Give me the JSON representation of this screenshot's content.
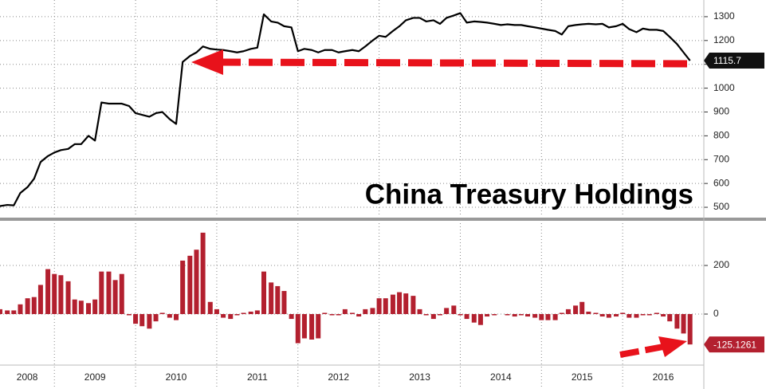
{
  "chart_data": [
    {
      "type": "line",
      "title": "China Treasury Holdings",
      "x": [
        2008.33,
        2008.42,
        2008.5,
        2008.58,
        2008.67,
        2008.75,
        2008.83,
        2008.92,
        2009,
        2009.08,
        2009.17,
        2009.25,
        2009.33,
        2009.42,
        2009.5,
        2009.58,
        2009.67,
        2009.75,
        2009.83,
        2009.92,
        2010,
        2010.08,
        2010.17,
        2010.25,
        2010.33,
        2010.42,
        2010.5,
        2010.58,
        2010.67,
        2010.75,
        2010.83,
        2010.92,
        2011,
        2011.08,
        2011.17,
        2011.25,
        2011.33,
        2011.42,
        2011.5,
        2011.58,
        2011.67,
        2011.75,
        2011.83,
        2011.92,
        2012,
        2012.08,
        2012.17,
        2012.25,
        2012.33,
        2012.42,
        2012.5,
        2012.58,
        2012.67,
        2012.75,
        2012.83,
        2012.92,
        2013,
        2013.08,
        2013.17,
        2013.25,
        2013.33,
        2013.42,
        2013.5,
        2013.58,
        2013.67,
        2013.75,
        2013.83,
        2013.92,
        2014,
        2014.08,
        2014.17,
        2014.25,
        2014.33,
        2014.42,
        2014.5,
        2014.58,
        2014.67,
        2014.75,
        2014.83,
        2014.92,
        2015,
        2015.08,
        2015.17,
        2015.25,
        2015.33,
        2015.42,
        2015.5,
        2015.58,
        2015.67,
        2015.75,
        2015.83,
        2015.92,
        2016,
        2016.08,
        2016.17,
        2016.25,
        2016.33,
        2016.42,
        2016.5,
        2016.58,
        2016.67,
        2016.75,
        2016.83
      ],
      "series": [
        {
          "color": "#000000",
          "values": [
            505,
            510,
            508,
            560,
            585,
            620,
            690,
            715,
            730,
            740,
            745,
            765,
            765,
            800,
            780,
            940,
            935,
            935,
            935,
            925,
            895,
            888,
            880,
            895,
            900,
            870,
            850,
            1110,
            1135,
            1150,
            1175,
            1165,
            1162,
            1160,
            1155,
            1150,
            1155,
            1165,
            1170,
            1310,
            1280,
            1275,
            1260,
            1255,
            1155,
            1165,
            1160,
            1150,
            1160,
            1160,
            1150,
            1155,
            1160,
            1155,
            1175,
            1200,
            1220,
            1215,
            1240,
            1260,
            1285,
            1295,
            1295,
            1280,
            1285,
            1270,
            1295,
            1305,
            1315,
            1275,
            1280,
            1278,
            1275,
            1270,
            1265,
            1268,
            1265,
            1265,
            1260,
            1255,
            1250,
            1245,
            1240,
            1225,
            1260,
            1265,
            1268,
            1270,
            1268,
            1270,
            1255,
            1260,
            1270,
            1248,
            1235,
            1250,
            1245,
            1245,
            1240,
            1215,
            1185,
            1150,
            1115.7
          ]
        }
      ],
      "xlim": [
        2008.33,
        2017
      ],
      "xticks": [
        2008,
        2009,
        2010,
        2011,
        2012,
        2013,
        2014,
        2015,
        2016
      ],
      "ylim": [
        460,
        1370
      ],
      "yticks": [
        500,
        600,
        700,
        800,
        900,
        1000,
        1100,
        1200,
        1300
      ],
      "grid": true
    },
    {
      "type": "bar",
      "x": [
        2008.33,
        2008.42,
        2008.5,
        2008.58,
        2008.67,
        2008.75,
        2008.83,
        2008.92,
        2009,
        2009.08,
        2009.17,
        2009.25,
        2009.33,
        2009.42,
        2009.5,
        2009.58,
        2009.67,
        2009.75,
        2009.83,
        2009.92,
        2010,
        2010.08,
        2010.17,
        2010.25,
        2010.33,
        2010.42,
        2010.5,
        2010.58,
        2010.67,
        2010.75,
        2010.83,
        2010.92,
        2011,
        2011.08,
        2011.17,
        2011.25,
        2011.33,
        2011.42,
        2011.5,
        2011.58,
        2011.67,
        2011.75,
        2011.83,
        2011.92,
        2012,
        2012.08,
        2012.17,
        2012.25,
        2012.33,
        2012.42,
        2012.5,
        2012.58,
        2012.67,
        2012.75,
        2012.83,
        2012.92,
        2013,
        2013.08,
        2013.17,
        2013.25,
        2013.33,
        2013.42,
        2013.5,
        2013.58,
        2013.67,
        2013.75,
        2013.83,
        2013.92,
        2014,
        2014.08,
        2014.17,
        2014.25,
        2014.33,
        2014.42,
        2014.5,
        2014.58,
        2014.67,
        2014.75,
        2014.83,
        2014.92,
        2015,
        2015.08,
        2015.17,
        2015.25,
        2015.33,
        2015.42,
        2015.5,
        2015.58,
        2015.67,
        2015.75,
        2015.83,
        2015.92,
        2016,
        2016.08,
        2016.17,
        2016.25,
        2016.33,
        2016.42,
        2016.5,
        2016.58,
        2016.67,
        2016.75,
        2016.83
      ],
      "series": [
        {
          "color": "#b3202f",
          "values": [
            20,
            15,
            15,
            40,
            65,
            70,
            120,
            185,
            165,
            160,
            135,
            60,
            55,
            45,
            60,
            175,
            175,
            140,
            165,
            -5,
            -40,
            -50,
            -60,
            -30,
            5,
            -15,
            -25,
            220,
            240,
            265,
            335,
            50,
            20,
            -15,
            -20,
            -5,
            5,
            10,
            15,
            175,
            130,
            115,
            95,
            -20,
            -120,
            -100,
            -105,
            -100,
            5,
            -5,
            -5,
            20,
            5,
            -10,
            20,
            25,
            65,
            65,
            80,
            90,
            85,
            75,
            20,
            -5,
            -20,
            -5,
            25,
            35,
            -5,
            -20,
            -35,
            -45,
            -10,
            -5,
            0,
            -5,
            -10,
            -5,
            -10,
            -15,
            -25,
            -25,
            -25,
            5,
            20,
            35,
            50,
            10,
            5,
            -10,
            -15,
            -10,
            5,
            -15,
            -15,
            -5,
            -5,
            5,
            -10,
            -30,
            -60,
            -80,
            -125.1261
          ]
        }
      ],
      "xlim": [
        2008.33,
        2017
      ],
      "xticks": [
        2008,
        2009,
        2010,
        2011,
        2012,
        2013,
        2014,
        2015,
        2016
      ],
      "ylim": [
        -210,
        374
      ],
      "yticks": [
        0,
        200
      ],
      "grid": true
    }
  ]
}
